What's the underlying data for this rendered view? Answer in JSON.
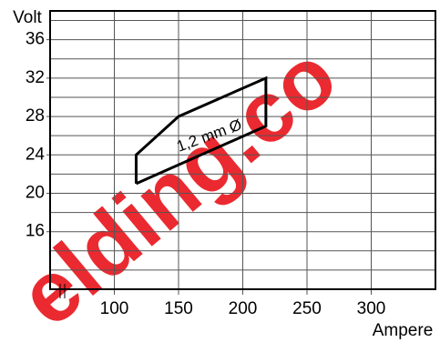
{
  "chart_data": {
    "type": "line",
    "x_label": "Ampere",
    "y_label": "Volt",
    "annotation": "1,2 mm Ø",
    "watermark": "elding.co",
    "series": [
      {
        "name": "1,2 mm Ø",
        "color": "#000000",
        "x": [
          117,
          117,
          150,
          218,
          218,
          117
        ],
        "values": [
          21,
          24,
          28,
          32,
          27,
          21
        ]
      }
    ],
    "xlim": [
      50,
      350
    ],
    "xticks": [
      100,
      150,
      200,
      250,
      300
    ],
    "ylim": [
      10,
      39
    ],
    "yticks": [
      16,
      20,
      24,
      28,
      32,
      36
    ],
    "minor_yticks": [
      12,
      14,
      18,
      22,
      26,
      30,
      34,
      38
    ],
    "grid": true
  }
}
